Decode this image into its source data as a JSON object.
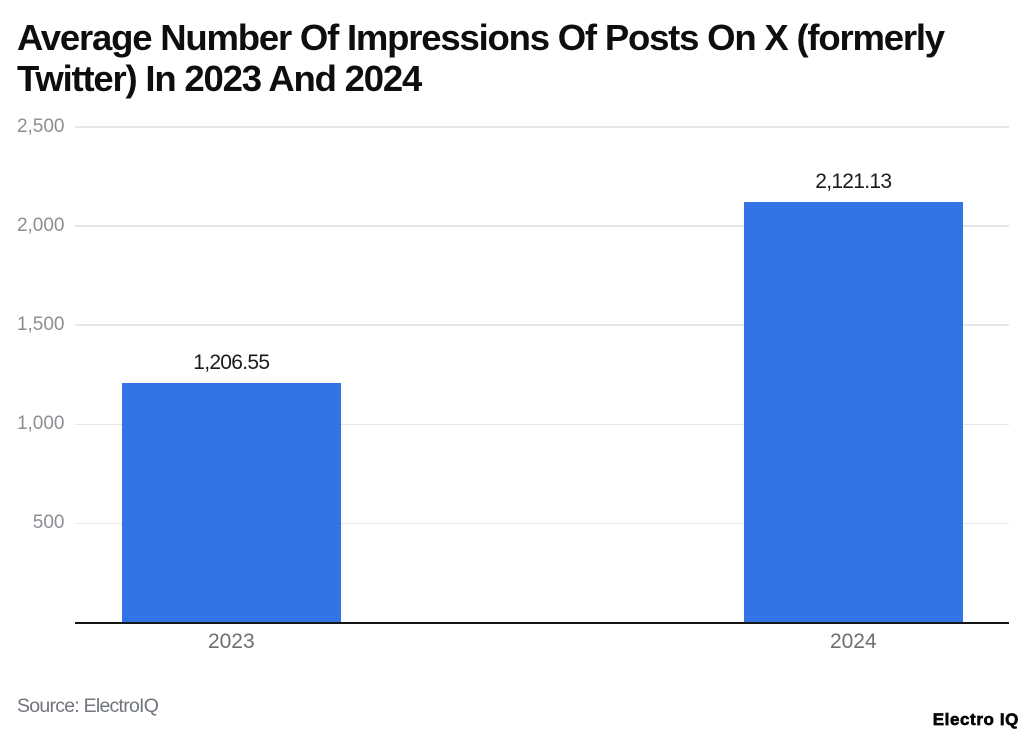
{
  "title": "Average Number Of Impressions Of Posts On X (formerly Twitter) In 2023 And 2024",
  "source_note": "Source: ElectroIQ",
  "brand": "Electro IQ",
  "colors": {
    "bar": "#3273e6",
    "title_text": "#0e0e0e",
    "axis_line": "#161616",
    "gridline": "#e6e6e6",
    "y_tick_text": "#8b8f94",
    "x_tick_text": "#747474",
    "value_label_text": "#1b1b1b",
    "background": "#ffffff"
  },
  "chart_data": {
    "type": "bar",
    "title": "Average Number Of Impressions Of Posts On X (formerly Twitter) In 2023 And 2024",
    "categories": [
      "2023",
      "2024"
    ],
    "values": [
      1206.55,
      2121.13
    ],
    "value_labels": [
      "1,206.55",
      "2,121.13"
    ],
    "xlabel": "",
    "ylabel": "",
    "ylim": [
      0,
      2500
    ],
    "y_ticks": [
      500,
      1000,
      1500,
      2000,
      2500
    ],
    "y_tick_labels": [
      "500",
      "1,000",
      "1,500",
      "2,000",
      "2,500"
    ],
    "grid": true,
    "legend": false,
    "bar_color": "#3273e6",
    "source": "ElectroIQ"
  }
}
